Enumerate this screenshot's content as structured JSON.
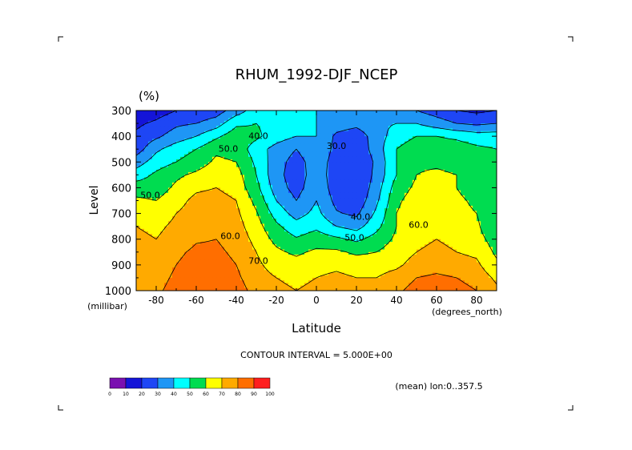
{
  "chart_data": {
    "type": "heatmap",
    "title": "RHUM_1992-DJF_NCEP",
    "units_label": "(%)",
    "xlabel": "Latitude",
    "ylabel": "Level",
    "x_unit_label": "(degrees_north)",
    "y_unit_label": "(millibar)",
    "xlim": [
      -90,
      90
    ],
    "ylim": [
      1000,
      300
    ],
    "x_ticks": [
      -80,
      -60,
      -40,
      -20,
      0,
      20,
      40,
      60,
      80
    ],
    "x_tick_labels": [
      "-80",
      "-60",
      "-40",
      "-20",
      "0",
      "20",
      "40",
      "60",
      "80"
    ],
    "y_ticks": [
      300,
      400,
      500,
      600,
      700,
      800,
      900,
      1000
    ],
    "y_tick_labels": [
      "300",
      "400",
      "500",
      "600",
      "700",
      "800",
      "900",
      "1000"
    ],
    "contour_interval_text": "CONTOUR INTERVAL = 5.000E+00",
    "annotation": "(mean) lon:0..357.5",
    "contour_labels": [
      {
        "text": "40.0",
        "x": -29,
        "y": 410
      },
      {
        "text": "50.0",
        "x": -44,
        "y": 460
      },
      {
        "text": "30.0",
        "x": 10,
        "y": 450
      },
      {
        "text": "50.0",
        "x": -83,
        "y": 640
      },
      {
        "text": "40.0",
        "x": 22,
        "y": 725
      },
      {
        "text": "50.0",
        "x": 19,
        "y": 805
      },
      {
        "text": "60.0",
        "x": 51,
        "y": 755
      },
      {
        "text": "60.0",
        "x": -43,
        "y": 800
      },
      {
        "text": "70.0",
        "x": -29,
        "y": 895
      }
    ],
    "grid": {
      "x": [
        -90,
        -80,
        -70,
        -60,
        -50,
        -40,
        -30,
        -20,
        -10,
        0,
        10,
        20,
        30,
        40,
        50,
        60,
        70,
        80,
        90
      ],
      "y": [
        300,
        350,
        400,
        450,
        500,
        550,
        600,
        650,
        700,
        750,
        800,
        850,
        900,
        950,
        1000
      ],
      "z": [
        [
          10,
          15,
          20,
          22,
          25,
          35,
          45,
          47,
          46,
          40,
          35,
          38,
          38,
          35,
          30,
          25,
          20,
          18,
          20
        ],
        [
          18,
          22,
          28,
          30,
          35,
          48,
          50,
          47,
          44,
          40,
          35,
          33,
          38,
          40,
          40,
          35,
          30,
          28,
          30
        ],
        [
          22,
          28,
          35,
          40,
          48,
          56,
          52,
          45,
          40,
          40,
          28,
          24,
          35,
          45,
          50,
          50,
          48,
          45,
          45
        ],
        [
          25,
          38,
          45,
          50,
          58,
          56,
          45,
          36,
          30,
          38,
          27,
          22,
          35,
          50,
          56,
          56,
          55,
          52,
          50
        ],
        [
          35,
          45,
          50,
          55,
          62,
          60,
          48,
          34,
          26,
          35,
          26,
          20,
          32,
          50,
          58,
          58,
          56,
          55,
          55
        ],
        [
          45,
          52,
          58,
          62,
          66,
          64,
          50,
          33,
          25,
          35,
          25,
          20,
          33,
          50,
          60,
          62,
          60,
          58,
          55
        ],
        [
          55,
          55,
          62,
          68,
          70,
          66,
          53,
          35,
          26,
          37,
          25,
          21,
          35,
          55,
          62,
          65,
          60,
          55,
          50
        ],
        [
          62,
          60,
          66,
          73,
          74,
          70,
          57,
          40,
          30,
          40,
          27,
          23,
          38,
          58,
          65,
          66,
          62,
          58,
          50
        ],
        [
          68,
          65,
          70,
          75,
          76,
          72,
          61,
          46,
          36,
          43,
          31,
          28,
          42,
          60,
          67,
          68,
          63,
          60,
          50
        ],
        [
          70,
          68,
          72,
          77,
          78,
          74,
          64,
          52,
          44,
          48,
          40,
          36,
          47,
          60,
          67,
          68,
          65,
          62,
          50
        ],
        [
          72,
          70,
          74,
          79,
          80,
          76,
          67,
          57,
          51,
          55,
          52,
          48,
          54,
          62,
          68,
          70,
          68,
          64,
          55
        ],
        [
          74,
          72,
          78,
          82,
          82,
          78,
          70,
          62,
          58,
          62,
          62,
          58,
          60,
          65,
          70,
          72,
          70,
          68,
          58
        ],
        [
          75,
          74,
          80,
          84,
          84,
          80,
          72,
          66,
          64,
          67,
          68,
          66,
          66,
          68,
          74,
          76,
          74,
          72,
          62
        ],
        [
          76,
          76,
          82,
          86,
          86,
          82,
          74,
          70,
          68,
          70,
          72,
          70,
          70,
          74,
          80,
          82,
          80,
          76,
          68
        ],
        [
          78,
          78,
          84,
          88,
          90,
          85,
          76,
          72,
          70,
          72,
          74,
          72,
          74,
          78,
          84,
          86,
          84,
          80,
          72
        ]
      ]
    },
    "levels": [
      0,
      10,
      20,
      30,
      40,
      50,
      60,
      70,
      80,
      90,
      100
    ],
    "level_tick_labels": [
      "0",
      "10",
      "20",
      "30",
      "40",
      "50",
      "60",
      "70",
      "80",
      "90",
      "100"
    ],
    "colors": [
      "#7a10b0",
      "#1414d8",
      "#1e46f5",
      "#1e96f5",
      "#00ffff",
      "#00dc50",
      "#ffff00",
      "#ffaa00",
      "#ff6e00",
      "#ff1e1e"
    ],
    "palette": {
      "line": "#000000",
      "background": "#ffffff"
    }
  }
}
